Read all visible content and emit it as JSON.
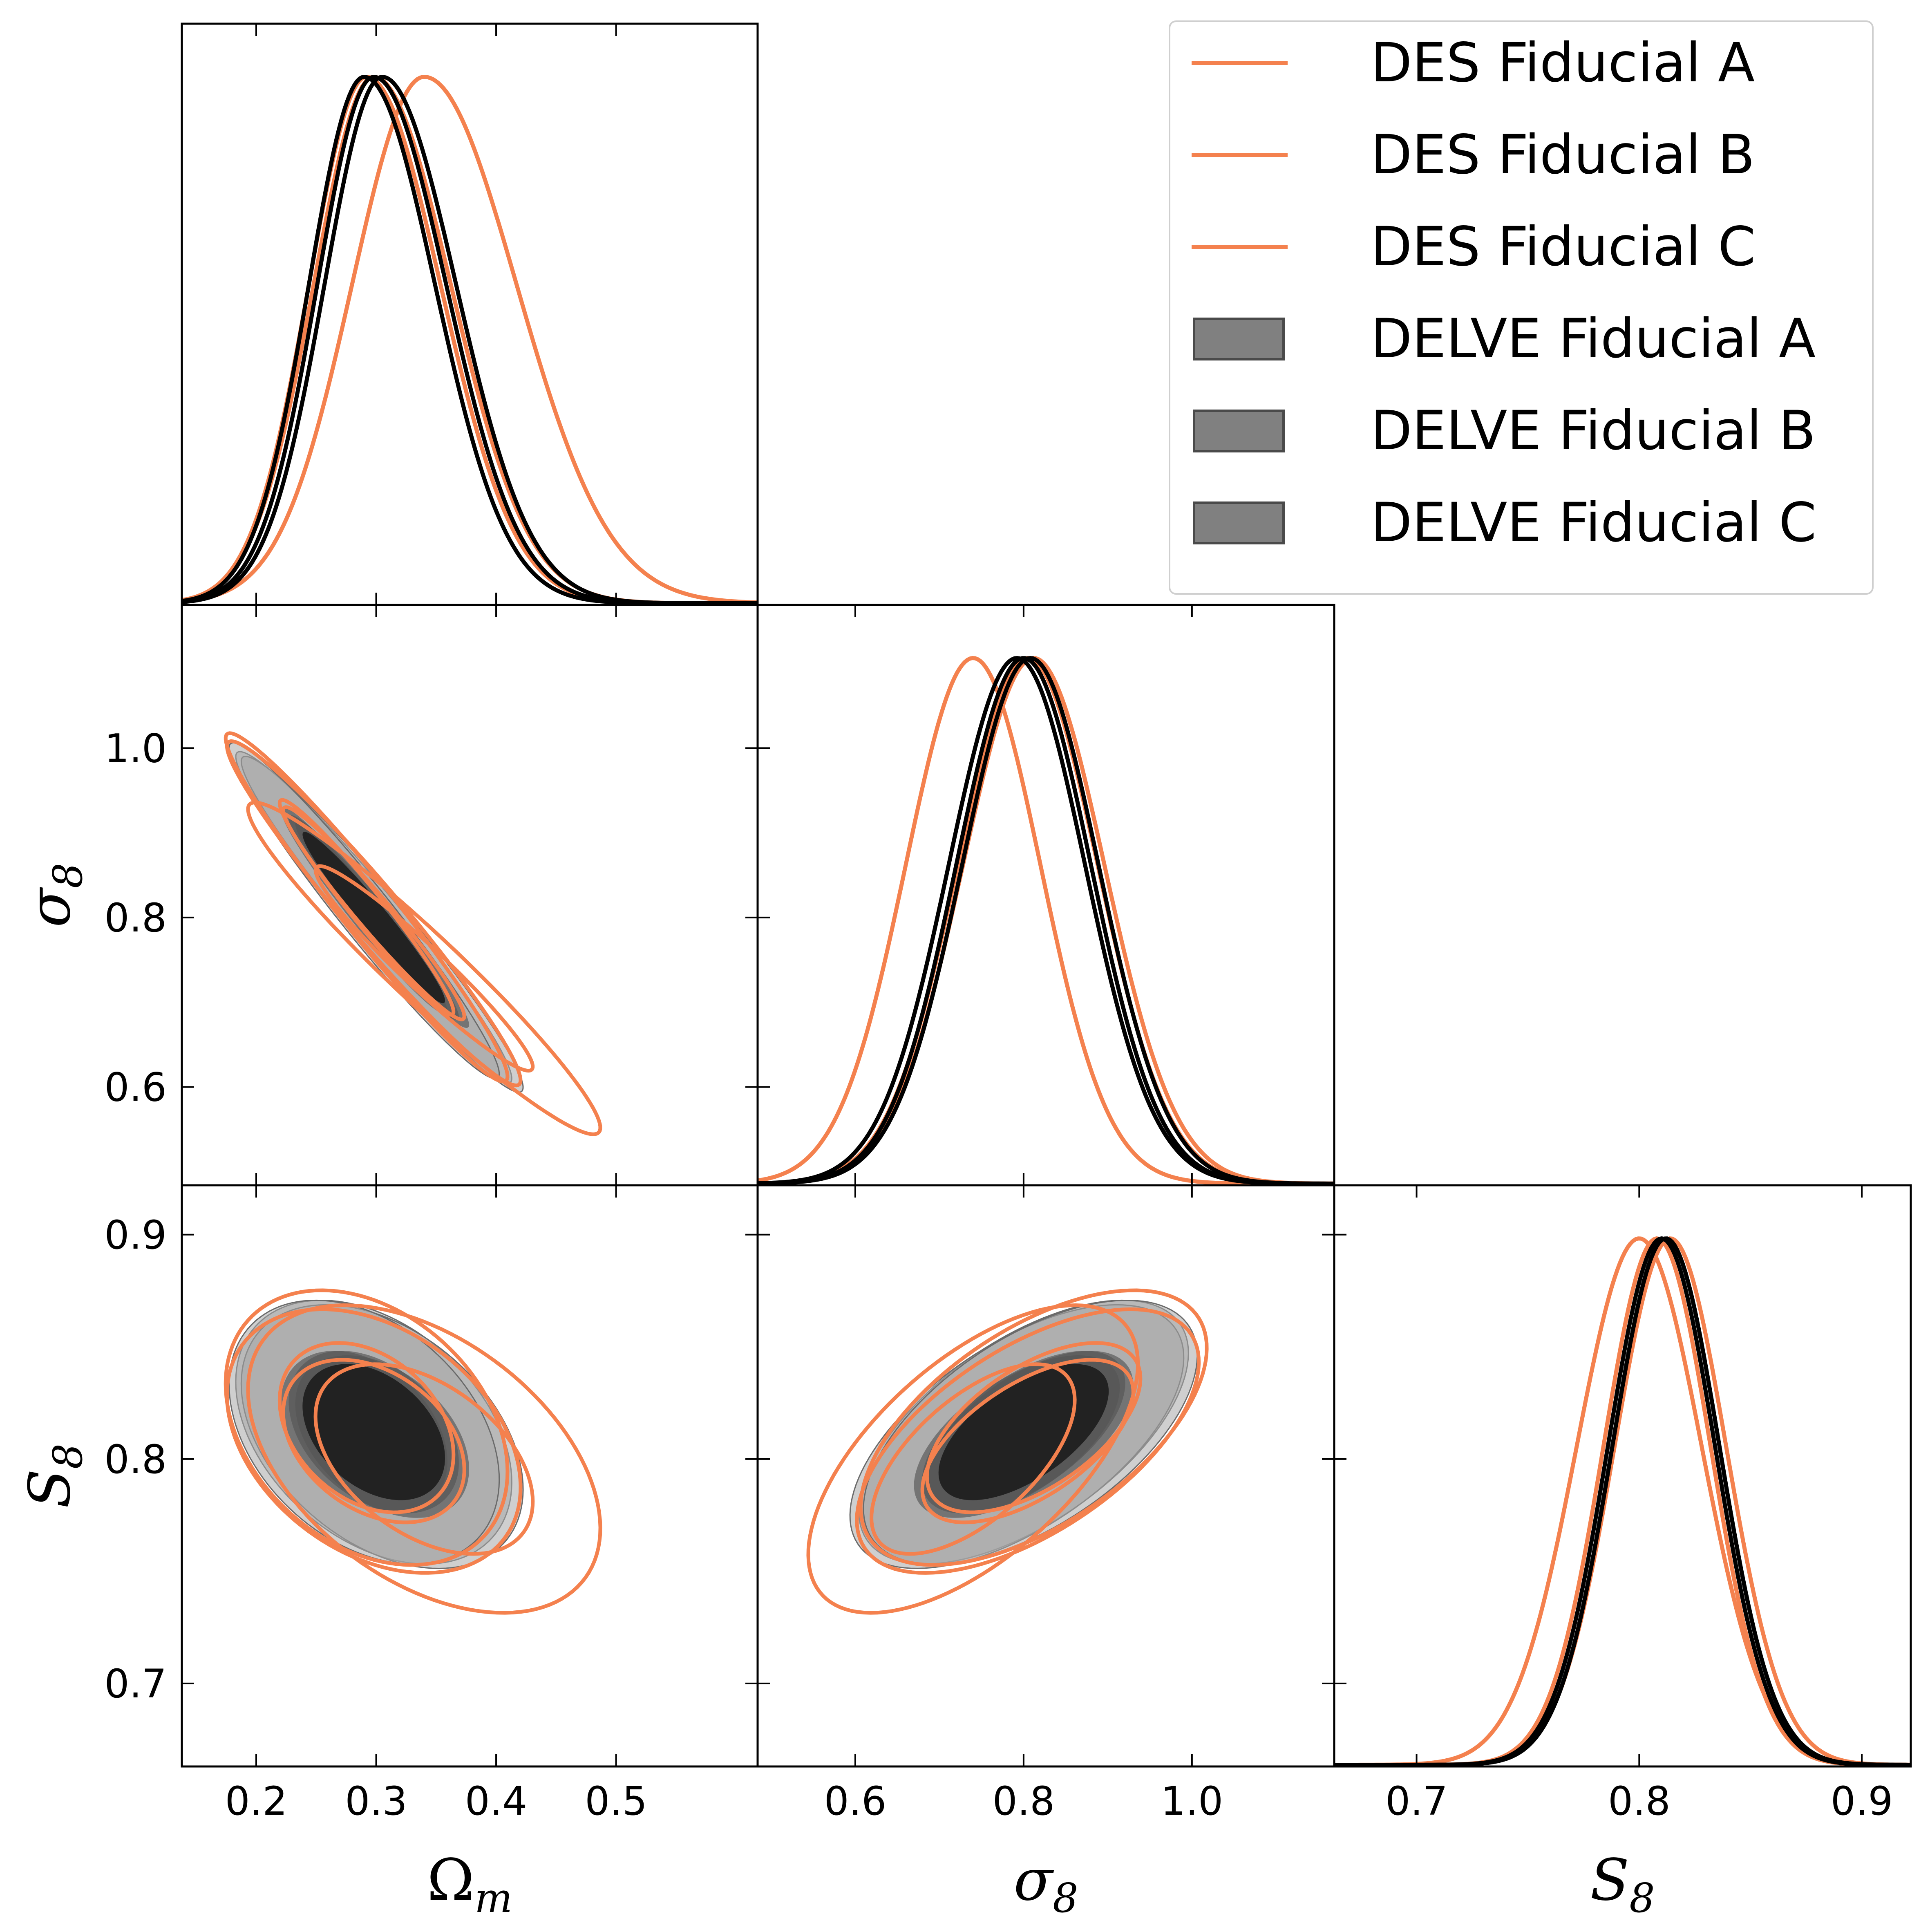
{
  "chart_data": {
    "type": "corner",
    "parameters": [
      "Ωm",
      "σ8",
      "S8"
    ],
    "axis_labels": {
      "omega_m": {
        "main": "Ω",
        "sub": "m"
      },
      "sigma_8": {
        "main": "σ",
        "sub": "8"
      },
      "s_8": {
        "main": "S",
        "sub": "8"
      }
    },
    "ranges": {
      "omega_m": [
        0.138,
        0.618
      ],
      "sigma_8": [
        0.484,
        1.169
      ],
      "s_8": [
        0.663,
        0.922
      ]
    },
    "ticks": {
      "omega_m": [
        "0.2",
        "0.3",
        "0.4",
        "0.5"
      ],
      "sigma_8": [
        "0.6",
        "0.8",
        "1.0"
      ],
      "s_8": [
        "0.7",
        "0.8",
        "0.9"
      ]
    },
    "tick_values": {
      "omega_m": [
        0.2,
        0.3,
        0.4,
        0.5
      ],
      "sigma_8": [
        0.6,
        0.8,
        1.0
      ],
      "s_8": [
        0.7,
        0.8,
        0.9
      ]
    },
    "colors": {
      "des": "#f4814e",
      "delve_inner": "#222222",
      "delve_mid": "#555555",
      "delve_outer": "#a8a8a8"
    },
    "legend_position": "upper-right",
    "series": [
      {
        "name": "DES Fiducial A",
        "kind": "line",
        "color": "#f4814e",
        "mean": {
          "omega_m": 0.298,
          "sigma_8": 0.805,
          "s_8": 0.808
        },
        "sd": {
          "omega_m": 0.05,
          "sigma_8": 0.083,
          "s_8": 0.024
        },
        "corr": {
          "om_s8": -0.97,
          "om_S8": -0.35,
          "s8_S8": 0.6
        }
      },
      {
        "name": "DES Fiducial B",
        "kind": "line",
        "color": "#f4814e",
        "mean": {
          "omega_m": 0.292,
          "sigma_8": 0.812,
          "s_8": 0.814
        },
        "sd": {
          "omega_m": 0.048,
          "sigma_8": 0.084,
          "s_8": 0.025
        },
        "corr": {
          "om_s8": -0.97,
          "om_S8": -0.32,
          "s8_S8": 0.58
        }
      },
      {
        "name": "DES Fiducial C",
        "kind": "line",
        "color": "#f4814e",
        "mean": {
          "omega_m": 0.34,
          "sigma_8": 0.74,
          "s_8": 0.8
        },
        "sd": {
          "omega_m": 0.06,
          "sigma_8": 0.08,
          "s_8": 0.028
        },
        "corr": {
          "om_s8": -0.96,
          "om_S8": -0.45,
          "s8_S8": 0.62
        }
      },
      {
        "name": "DELVE Fiducial A",
        "kind": "filled",
        "color": "#808080",
        "mean": {
          "omega_m": 0.298,
          "sigma_8": 0.8,
          "s_8": 0.812
        },
        "sd": {
          "omega_m": 0.047,
          "sigma_8": 0.08,
          "s_8": 0.024
        },
        "corr": {
          "om_s8": -0.97,
          "om_S8": -0.38,
          "s8_S8": 0.6
        }
      },
      {
        "name": "DELVE Fiducial B",
        "kind": "filled",
        "color": "#808080",
        "mean": {
          "omega_m": 0.305,
          "sigma_8": 0.792,
          "s_8": 0.81
        },
        "sd": {
          "omega_m": 0.048,
          "sigma_8": 0.081,
          "s_8": 0.024
        },
        "corr": {
          "om_s8": -0.97,
          "om_S8": -0.4,
          "s8_S8": 0.6
        }
      },
      {
        "name": "DELVE Fiducial C",
        "kind": "filled",
        "color": "#808080",
        "mean": {
          "omega_m": 0.29,
          "sigma_8": 0.808,
          "s_8": 0.812
        },
        "sd": {
          "omega_m": 0.046,
          "sigma_8": 0.081,
          "s_8": 0.024
        },
        "corr": {
          "om_s8": -0.97,
          "om_S8": -0.36,
          "s8_S8": 0.58
        }
      }
    ]
  },
  "legend": {
    "items": [
      {
        "label": "DES Fiducial A",
        "style": "line",
        "color": "#f4814e"
      },
      {
        "label": "DES Fiducial B",
        "style": "line",
        "color": "#f4814e"
      },
      {
        "label": "DES Fiducial C",
        "style": "line",
        "color": "#f4814e"
      },
      {
        "label": "DELVE Fiducial A",
        "style": "patch",
        "color": "#808080"
      },
      {
        "label": "DELVE Fiducial B",
        "style": "patch",
        "color": "#808080"
      },
      {
        "label": "DELVE Fiducial C",
        "style": "patch",
        "color": "#808080"
      }
    ]
  }
}
